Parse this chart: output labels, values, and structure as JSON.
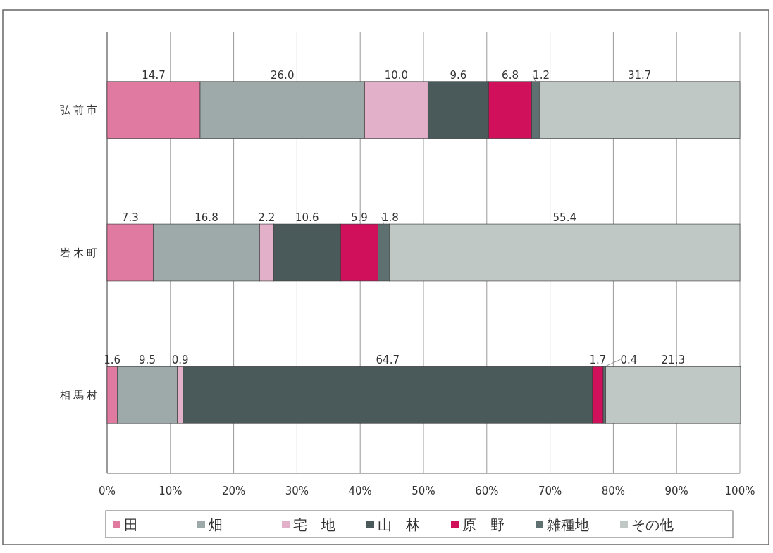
{
  "chart_data": {
    "type": "bar",
    "orientation": "horizontal",
    "stacked": true,
    "categories": [
      "弘前市",
      "岩木町",
      "相馬村"
    ],
    "xlim": [
      0,
      100
    ],
    "xticks": [
      {
        "value": 0,
        "label": "0%"
      },
      {
        "value": 10,
        "label": "10%"
      },
      {
        "value": 20,
        "label": "20%"
      },
      {
        "value": 30,
        "label": "30%"
      },
      {
        "value": 40,
        "label": "40%"
      },
      {
        "value": 50,
        "label": "50%"
      },
      {
        "value": 60,
        "label": "60%"
      },
      {
        "value": 70,
        "label": "70%"
      },
      {
        "value": 80,
        "label": "80%"
      },
      {
        "value": 90,
        "label": "90%"
      },
      {
        "value": 100,
        "label": "100%"
      }
    ],
    "grid": "x",
    "legend": "bottom",
    "series": [
      {
        "name": "田",
        "color": "#e07aa0",
        "values": [
          14.7,
          7.3,
          1.6
        ],
        "value_labels": [
          "14.7",
          "7.3",
          "1.6"
        ]
      },
      {
        "name": "畑",
        "color": "#9eaaaa",
        "values": [
          26.0,
          16.8,
          9.5
        ],
        "value_labels": [
          "26.0",
          "16.8",
          "9.5"
        ]
      },
      {
        "name": "宅　地",
        "color": "#e2b0c8",
        "values": [
          10.0,
          2.2,
          0.9
        ],
        "value_labels": [
          "10.0",
          "2.2",
          "0.9"
        ]
      },
      {
        "name": "山　林",
        "color": "#4a5a5a",
        "values": [
          9.6,
          10.6,
          64.7
        ],
        "value_labels": [
          "9.6",
          "10.6",
          "64.7"
        ]
      },
      {
        "name": "原　野",
        "color": "#d0105a",
        "values": [
          6.8,
          5.9,
          1.7
        ],
        "value_labels": [
          "6.8",
          "5.9",
          "1.7"
        ]
      },
      {
        "name": "雑種地",
        "color": "#5e7070",
        "values": [
          1.2,
          1.8,
          0.4
        ],
        "value_labels": [
          "1.2",
          "1.8",
          "0.4"
        ]
      },
      {
        "name": "その他",
        "color": "#c0c8c6",
        "values": [
          31.7,
          55.4,
          21.3
        ],
        "value_labels": [
          "31.7",
          "55.4",
          "21.3"
        ]
      }
    ]
  }
}
